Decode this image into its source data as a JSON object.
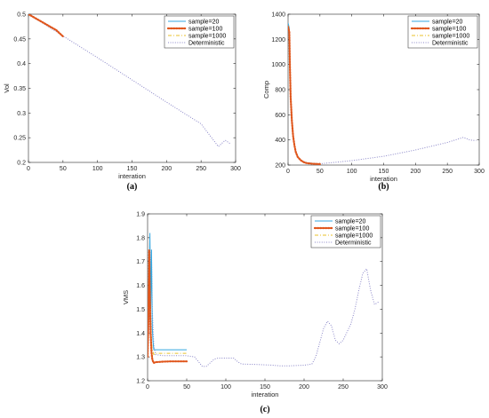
{
  "colors": {
    "sample20": "#35a7e0",
    "sample100": "#e0561c",
    "sample1000": "#e8c22a",
    "deterministic": "#8a86c8",
    "axis": "#262626"
  },
  "chart_data": [
    {
      "id": "a",
      "type": "line",
      "caption": "(a)",
      "xlabel": "interation",
      "ylabel": "Vol",
      "xlim": [
        0,
        300
      ],
      "ylim": [
        0.2,
        0.5
      ],
      "xticks": [
        0,
        50,
        100,
        150,
        200,
        250,
        300
      ],
      "yticks": [
        0.2,
        0.25,
        0.3,
        0.35,
        0.4,
        0.45,
        0.5
      ],
      "ytick_labels": [
        "0.2",
        "0.25",
        "0.3",
        "0.35",
        "0.4",
        "0.45",
        "0.5"
      ],
      "legend_position": "top-right",
      "series": [
        {
          "name": "sample=20",
          "style": "solid",
          "color_key": "sample20",
          "x": [
            0,
            10,
            20,
            30,
            40,
            50
          ],
          "y": [
            0.5,
            0.492,
            0.484,
            0.476,
            0.468,
            0.455
          ]
        },
        {
          "name": "sample=100",
          "style": "dotted-thick",
          "color_key": "sample100",
          "x": [
            0,
            10,
            20,
            30,
            40,
            50
          ],
          "y": [
            0.5,
            0.492,
            0.484,
            0.476,
            0.468,
            0.455
          ]
        },
        {
          "name": "sample=1000",
          "style": "dashdot",
          "color_key": "sample1000",
          "x": [
            0,
            10,
            20,
            30,
            40,
            50
          ],
          "y": [
            0.5,
            0.492,
            0.484,
            0.476,
            0.468,
            0.455
          ]
        },
        {
          "name": "Deterministic",
          "style": "dotted",
          "color_key": "deterministic",
          "x": [
            0,
            50,
            100,
            150,
            200,
            250,
            275,
            285,
            292
          ],
          "y": [
            0.5,
            0.456,
            0.412,
            0.367,
            0.322,
            0.278,
            0.232,
            0.245,
            0.238
          ]
        }
      ]
    },
    {
      "id": "b",
      "type": "line",
      "caption": "(b)",
      "xlabel": "interation",
      "ylabel": "Comp",
      "xlim": [
        0,
        300
      ],
      "ylim": [
        200,
        1400
      ],
      "xticks": [
        0,
        50,
        100,
        150,
        200,
        250,
        300
      ],
      "yticks": [
        200,
        400,
        600,
        800,
        1000,
        1200,
        1400
      ],
      "ytick_labels": [
        "200",
        "400",
        "600",
        "800",
        "1000",
        "1200",
        "1400"
      ],
      "legend_position": "top-right",
      "series": [
        {
          "name": "sample=20",
          "style": "solid",
          "color_key": "sample20",
          "x": [
            0,
            2,
            3,
            4,
            6,
            8,
            10,
            12,
            15,
            20,
            25,
            30,
            40,
            50
          ],
          "y": [
            1330,
            1290,
            1000,
            760,
            560,
            440,
            360,
            310,
            270,
            240,
            225,
            218,
            212,
            210
          ]
        },
        {
          "name": "sample=100",
          "style": "dotted-thick",
          "color_key": "sample100",
          "x": [
            0,
            2,
            3,
            4,
            6,
            8,
            10,
            12,
            15,
            20,
            25,
            30,
            40,
            50
          ],
          "y": [
            1300,
            1260,
            980,
            740,
            550,
            430,
            355,
            305,
            265,
            238,
            222,
            215,
            210,
            208
          ]
        },
        {
          "name": "sample=1000",
          "style": "dashdot",
          "color_key": "sample1000",
          "x": [
            0,
            2,
            3,
            4,
            6,
            8,
            10,
            12,
            15,
            20,
            25,
            30,
            40,
            50
          ],
          "y": [
            1310,
            1270,
            990,
            750,
            555,
            435,
            358,
            307,
            268,
            239,
            224,
            216,
            211,
            209
          ]
        },
        {
          "name": "Deterministic",
          "style": "dotted",
          "color_key": "deterministic",
          "x": [
            0,
            2,
            3,
            4,
            6,
            8,
            10,
            15,
            20,
            30,
            50,
            100,
            150,
            200,
            250,
            275,
            285,
            295
          ],
          "y": [
            1300,
            1260,
            980,
            740,
            550,
            430,
            355,
            265,
            240,
            217,
            210,
            235,
            270,
            320,
            380,
            420,
            400,
            395
          ]
        }
      ]
    },
    {
      "id": "c",
      "type": "line",
      "caption": "(c)",
      "xlabel": "interation",
      "ylabel": "VMS",
      "xlim": [
        0,
        300
      ],
      "ylim": [
        1.2,
        1.9
      ],
      "xticks": [
        0,
        50,
        100,
        150,
        200,
        250,
        300
      ],
      "yticks": [
        1.2,
        1.3,
        1.4,
        1.5,
        1.6,
        1.7,
        1.8,
        1.9
      ],
      "ytick_labels": [
        "1.2",
        "1.3",
        "1.4",
        "1.5",
        "1.6",
        "1.7",
        "1.8",
        "1.9"
      ],
      "legend_position": "top-right",
      "series": [
        {
          "name": "sample=20",
          "style": "solid",
          "color_key": "sample20",
          "x": [
            0,
            1,
            2,
            3,
            4,
            5,
            6,
            7,
            8,
            10,
            15,
            20,
            30,
            40,
            50
          ],
          "y": [
            1.31,
            1.4,
            1.6,
            1.82,
            1.5,
            1.75,
            1.42,
            1.36,
            1.33,
            1.33,
            1.33,
            1.33,
            1.33,
            1.33,
            1.33
          ]
        },
        {
          "name": "sample=100",
          "style": "dotted-thick",
          "color_key": "sample100",
          "x": [
            0,
            1,
            2,
            3,
            4,
            5,
            6,
            7,
            8,
            10,
            15,
            20,
            30,
            40,
            50
          ],
          "y": [
            1.3,
            1.45,
            1.75,
            1.55,
            1.4,
            1.32,
            1.29,
            1.28,
            1.275,
            1.278,
            1.279,
            1.28,
            1.281,
            1.281,
            1.281
          ]
        },
        {
          "name": "sample=1000",
          "style": "dashdot",
          "color_key": "sample1000",
          "x": [
            0,
            1,
            2,
            3,
            4,
            5,
            6,
            7,
            8,
            10,
            15,
            20,
            30,
            40,
            50
          ],
          "y": [
            1.31,
            1.42,
            1.7,
            1.6,
            1.45,
            1.36,
            1.33,
            1.32,
            1.31,
            1.315,
            1.315,
            1.315,
            1.315,
            1.315,
            1.315
          ]
        },
        {
          "name": "Deterministic",
          "style": "dotted",
          "color_key": "deterministic",
          "x": [
            0,
            2,
            4,
            5,
            6,
            8,
            10,
            20,
            40,
            50,
            60,
            65,
            70,
            75,
            80,
            85,
            90,
            100,
            110,
            115,
            120,
            140,
            160,
            170,
            180,
            200,
            210,
            215,
            220,
            225,
            230,
            235,
            240,
            245,
            250,
            260,
            265,
            270,
            275,
            280,
            285,
            290,
            295
          ],
          "y": [
            1.3,
            1.45,
            1.7,
            1.75,
            1.5,
            1.35,
            1.31,
            1.305,
            1.305,
            1.305,
            1.3,
            1.28,
            1.26,
            1.26,
            1.275,
            1.29,
            1.295,
            1.295,
            1.295,
            1.28,
            1.27,
            1.268,
            1.265,
            1.262,
            1.262,
            1.265,
            1.27,
            1.3,
            1.36,
            1.42,
            1.45,
            1.43,
            1.37,
            1.355,
            1.37,
            1.44,
            1.5,
            1.58,
            1.65,
            1.67,
            1.58,
            1.52,
            1.53
          ]
        }
      ]
    }
  ]
}
